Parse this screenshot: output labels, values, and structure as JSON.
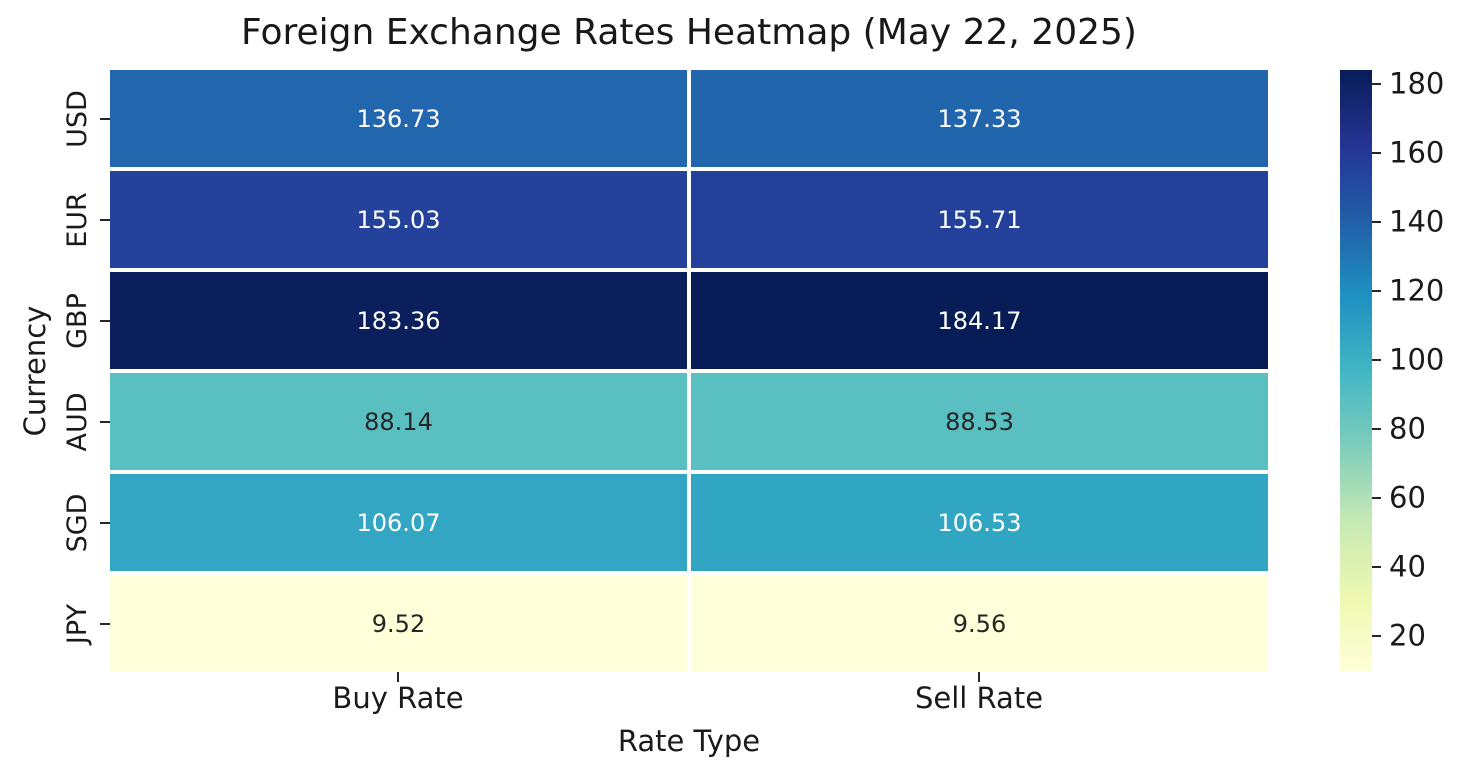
{
  "title": "Foreign Exchange Rates Heatmap (May 22, 2025)",
  "chart_data": {
    "type": "heatmap",
    "title": "Foreign Exchange Rates Heatmap (May 22, 2025)",
    "xlabel": "Rate Type",
    "ylabel": "Currency",
    "columns": [
      "Buy Rate",
      "Sell Rate"
    ],
    "rows": [
      "USD",
      "EUR",
      "GBP",
      "AUD",
      "SGD",
      "JPY"
    ],
    "values": [
      [
        136.73,
        137.33
      ],
      [
        155.03,
        155.71
      ],
      [
        183.36,
        184.17
      ],
      [
        88.14,
        88.53
      ],
      [
        106.07,
        106.53
      ],
      [
        9.52,
        9.56
      ]
    ],
    "cell_colors": [
      [
        "#2267ad",
        "#2166ac"
      ],
      [
        "#24429b",
        "#23419a"
      ],
      [
        "#0a1f5c",
        "#081d58"
      ],
      [
        "#5abfc0",
        "#59bfc1"
      ],
      [
        "#32a6c2",
        "#31a6c2"
      ],
      [
        "#ffffd9",
        "#ffffd9"
      ]
    ],
    "text_colors": [
      [
        "#ffffff",
        "#ffffff"
      ],
      [
        "#ffffff",
        "#ffffff"
      ],
      [
        "#ffffff",
        "#ffffff"
      ],
      [
        "#262626",
        "#262626"
      ],
      [
        "#ffffff",
        "#ffffff"
      ],
      [
        "#262626",
        "#262626"
      ]
    ],
    "colormap": "YlGnBu",
    "grid_line_color": "#ffffff",
    "colorbar": {
      "vmin": 9.52,
      "vmax": 184.17,
      "ticks": [
        20,
        40,
        60,
        80,
        100,
        120,
        140,
        160,
        180
      ],
      "gradient": [
        "#ffffd9",
        "#edf8b1",
        "#c7e9b4",
        "#7fcdbb",
        "#41b6c4",
        "#1d91c0",
        "#225ea8",
        "#253494",
        "#081d58"
      ]
    }
  }
}
